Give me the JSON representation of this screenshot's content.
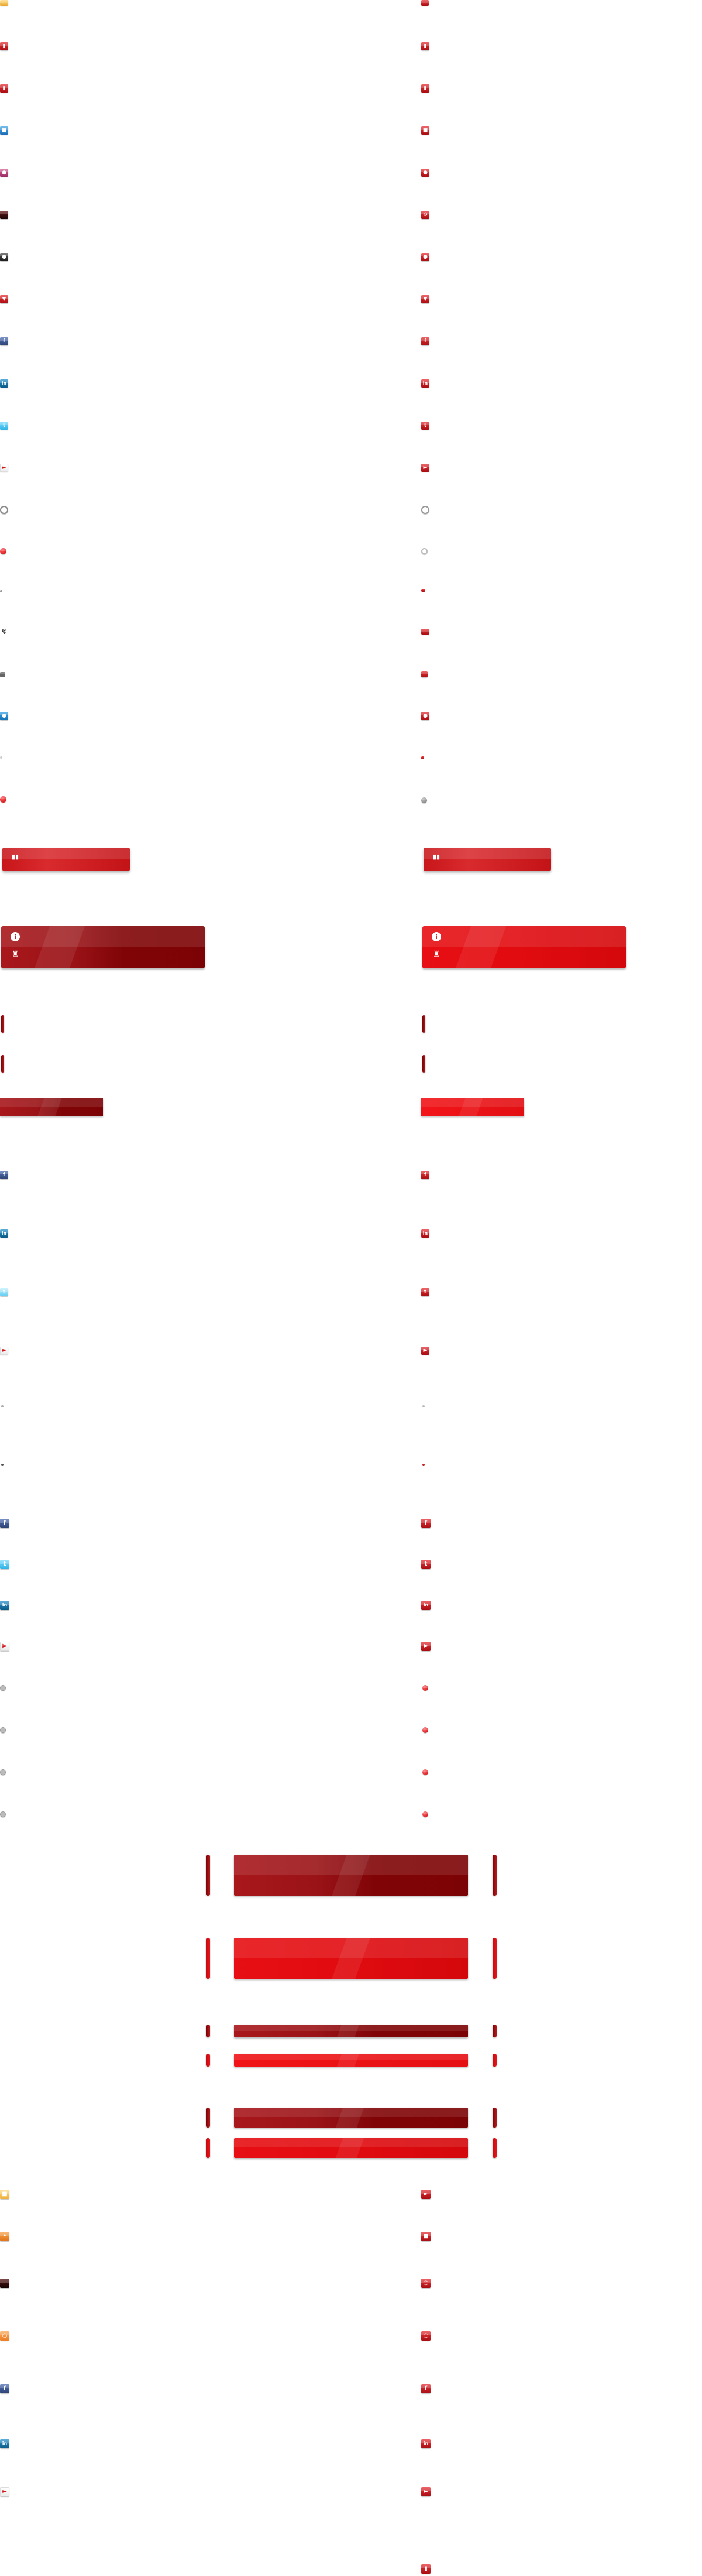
{
  "colors": {
    "accent_red": "#e20c10",
    "dark_red": "#7c0305",
    "facebook_blue": "#3b5998",
    "linkedin_blue": "#0e76a8",
    "twitter_cyan": "#33ccff",
    "rss_orange": "#f7931e",
    "folder_yellow": "#f5c342"
  },
  "icons": {
    "left_column": [
      "folder-icon",
      "bookmark-icon",
      "bookmark-icon",
      "chat-icon",
      "user-icon",
      "dark-app-icon",
      "contact-icon",
      "email-icon",
      "facebook-icon",
      "linkedin-icon",
      "twitter-icon",
      "megaphone-icon",
      "circle-outline-icon",
      "red-dot-icon",
      "small-dot-icon",
      "link-icon",
      "small-square-icon",
      "chat-bubble-icon",
      "tiny-dot-icon",
      "red-dot-icon"
    ],
    "right_column": [
      "folder-icon",
      "bookmark-icon",
      "bookmark-icon",
      "chat-icon",
      "user-icon",
      "gear-icon",
      "contact-icon",
      "email-icon",
      "facebook-icon",
      "linkedin-icon",
      "twitter-icon",
      "megaphone-icon",
      "circle-outline-icon",
      "circle-outline-icon",
      "small-dot-icon",
      "link-icon",
      "small-square-icon",
      "chat-bubble-icon",
      "tiny-dot-icon",
      "grey-dot-icon"
    ]
  },
  "panels": {
    "pill_icon": "comments-icon",
    "info_glyph": "i",
    "shop_icon": "shopping-bag-icon"
  }
}
